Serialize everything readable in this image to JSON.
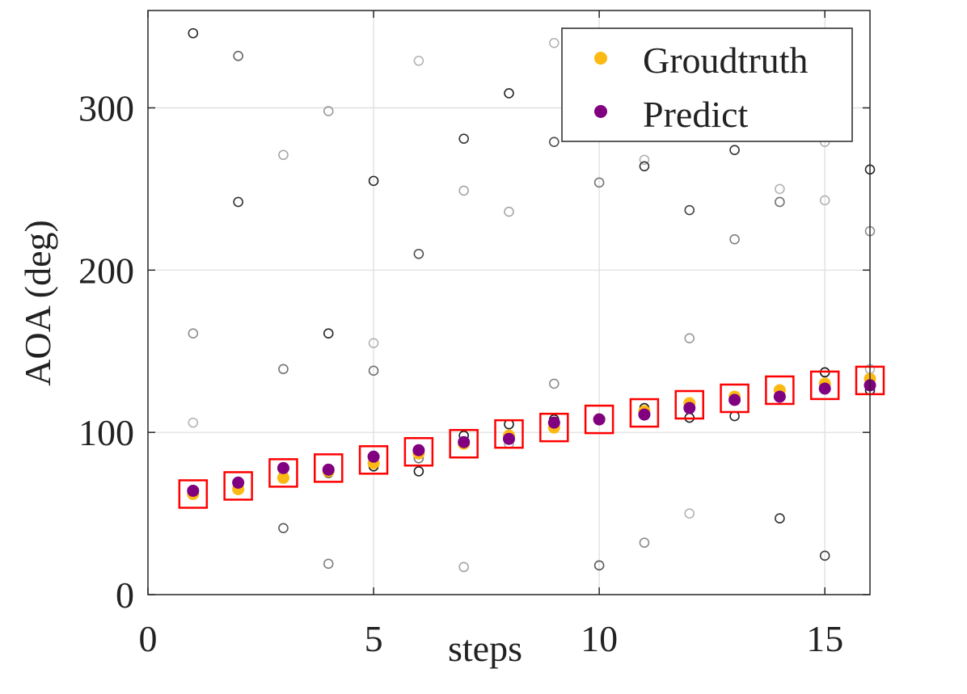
{
  "colors": {
    "groundtruth": "#FDB913",
    "predict": "#800080",
    "box": "#FF0000",
    "grid": "#DCDCDC",
    "axis": "#262626"
  },
  "chart_data": {
    "type": "scatter",
    "xlabel": "steps",
    "ylabel": "AOA (deg)",
    "xlim": [
      0,
      16
    ],
    "ylim": [
      0,
      360
    ],
    "xticks": [
      0,
      5,
      10,
      15
    ],
    "yticks": [
      0,
      100,
      200,
      300
    ],
    "xtick_labels": [
      "0",
      "5",
      "10",
      "15"
    ],
    "ytick_labels": [
      "0",
      "100",
      "200",
      "300"
    ],
    "grid": true,
    "legend_position": "top-right",
    "series": [
      {
        "name": "Groudtruth",
        "marker": "filled-circle",
        "x": [
          1,
          2,
          3,
          4,
          5,
          6,
          7,
          8,
          9,
          10,
          11,
          12,
          13,
          14,
          15,
          16
        ],
        "y": [
          62,
          65,
          72,
          76,
          81,
          87,
          93,
          98,
          103,
          108,
          113,
          118,
          122,
          126,
          130,
          133
        ]
      },
      {
        "name": "Predict",
        "marker": "filled-circle",
        "x": [
          1,
          2,
          3,
          4,
          5,
          6,
          7,
          8,
          9,
          10,
          11,
          12,
          13,
          14,
          15,
          16
        ],
        "y": [
          64,
          69,
          78,
          77,
          85,
          89,
          94,
          96,
          106,
          108,
          111,
          115,
          120,
          122,
          127,
          129
        ]
      }
    ],
    "candidates": [
      {
        "x": 1,
        "y": 346,
        "shade": 0.85
      },
      {
        "x": 1,
        "y": 161,
        "shade": 0.45
      },
      {
        "x": 1,
        "y": 106,
        "shade": 0.3
      },
      {
        "x": 1,
        "y": 64,
        "shade": 0.9
      },
      {
        "x": 2,
        "y": 332,
        "shade": 0.6
      },
      {
        "x": 2,
        "y": 242,
        "shade": 0.8
      },
      {
        "x": 2,
        "y": 68,
        "shade": 0.9
      },
      {
        "x": 2,
        "y": 65,
        "shade": 0.35
      },
      {
        "x": 3,
        "y": 271,
        "shade": 0.35
      },
      {
        "x": 3,
        "y": 139,
        "shade": 0.55
      },
      {
        "x": 3,
        "y": 73,
        "shade": 0.9
      },
      {
        "x": 3,
        "y": 41,
        "shade": 0.65
      },
      {
        "x": 4,
        "y": 298,
        "shade": 0.4
      },
      {
        "x": 4,
        "y": 161,
        "shade": 0.85
      },
      {
        "x": 4,
        "y": 75,
        "shade": 0.9
      },
      {
        "x": 4,
        "y": 19,
        "shade": 0.5
      },
      {
        "x": 5,
        "y": 255,
        "shade": 0.85
      },
      {
        "x": 5,
        "y": 155,
        "shade": 0.3
      },
      {
        "x": 5,
        "y": 138,
        "shade": 0.55
      },
      {
        "x": 5,
        "y": 79,
        "shade": 0.9
      },
      {
        "x": 6,
        "y": 329,
        "shade": 0.3
      },
      {
        "x": 6,
        "y": 210,
        "shade": 0.7
      },
      {
        "x": 6,
        "y": 84,
        "shade": 0.55
      },
      {
        "x": 6,
        "y": 76,
        "shade": 0.9
      },
      {
        "x": 7,
        "y": 281,
        "shade": 0.8
      },
      {
        "x": 7,
        "y": 249,
        "shade": 0.35
      },
      {
        "x": 7,
        "y": 98,
        "shade": 0.9
      },
      {
        "x": 7,
        "y": 17,
        "shade": 0.35
      },
      {
        "x": 8,
        "y": 309,
        "shade": 0.85
      },
      {
        "x": 8,
        "y": 236,
        "shade": 0.35
      },
      {
        "x": 8,
        "y": 105,
        "shade": 0.9
      },
      {
        "x": 8,
        "y": 93,
        "shade": 0.35
      },
      {
        "x": 9,
        "y": 340,
        "shade": 0.3
      },
      {
        "x": 9,
        "y": 279,
        "shade": 0.7
      },
      {
        "x": 9,
        "y": 130,
        "shade": 0.45
      },
      {
        "x": 9,
        "y": 108,
        "shade": 0.9
      },
      {
        "x": 10,
        "y": 254,
        "shade": 0.55
      },
      {
        "x": 10,
        "y": 108,
        "shade": 0.85
      },
      {
        "x": 10,
        "y": 18,
        "shade": 0.65
      },
      {
        "x": 11,
        "y": 268,
        "shade": 0.3
      },
      {
        "x": 11,
        "y": 264,
        "shade": 0.8
      },
      {
        "x": 11,
        "y": 115,
        "shade": 0.9
      },
      {
        "x": 11,
        "y": 32,
        "shade": 0.45
      },
      {
        "x": 12,
        "y": 237,
        "shade": 0.75
      },
      {
        "x": 12,
        "y": 158,
        "shade": 0.4
      },
      {
        "x": 12,
        "y": 109,
        "shade": 0.9
      },
      {
        "x": 12,
        "y": 50,
        "shade": 0.3
      },
      {
        "x": 13,
        "y": 274,
        "shade": 0.8
      },
      {
        "x": 13,
        "y": 219,
        "shade": 0.5
      },
      {
        "x": 13,
        "y": 110,
        "shade": 0.85
      },
      {
        "x": 14,
        "y": 250,
        "shade": 0.3
      },
      {
        "x": 14,
        "y": 242,
        "shade": 0.55
      },
      {
        "x": 14,
        "y": 122,
        "shade": 0.9
      },
      {
        "x": 14,
        "y": 47,
        "shade": 0.8
      },
      {
        "x": 15,
        "y": 279,
        "shade": 0.3
      },
      {
        "x": 15,
        "y": 243,
        "shade": 0.3
      },
      {
        "x": 15,
        "y": 137,
        "shade": 0.9
      },
      {
        "x": 15,
        "y": 24,
        "shade": 0.75
      },
      {
        "x": 16,
        "y": 262,
        "shade": 0.85
      },
      {
        "x": 16,
        "y": 224,
        "shade": 0.45
      },
      {
        "x": 16,
        "y": 139,
        "shade": 0.3
      },
      {
        "x": 16,
        "y": 126,
        "shade": 0.9
      }
    ],
    "highlight_boxes": [
      {
        "x": 1,
        "y": 62
      },
      {
        "x": 2,
        "y": 67
      },
      {
        "x": 3,
        "y": 75
      },
      {
        "x": 4,
        "y": 78
      },
      {
        "x": 5,
        "y": 83
      },
      {
        "x": 6,
        "y": 88
      },
      {
        "x": 7,
        "y": 93
      },
      {
        "x": 8,
        "y": 99
      },
      {
        "x": 9,
        "y": 103
      },
      {
        "x": 10,
        "y": 108
      },
      {
        "x": 11,
        "y": 112
      },
      {
        "x": 12,
        "y": 117
      },
      {
        "x": 13,
        "y": 121
      },
      {
        "x": 14,
        "y": 126
      },
      {
        "x": 15,
        "y": 129
      },
      {
        "x": 16,
        "y": 132
      }
    ]
  }
}
